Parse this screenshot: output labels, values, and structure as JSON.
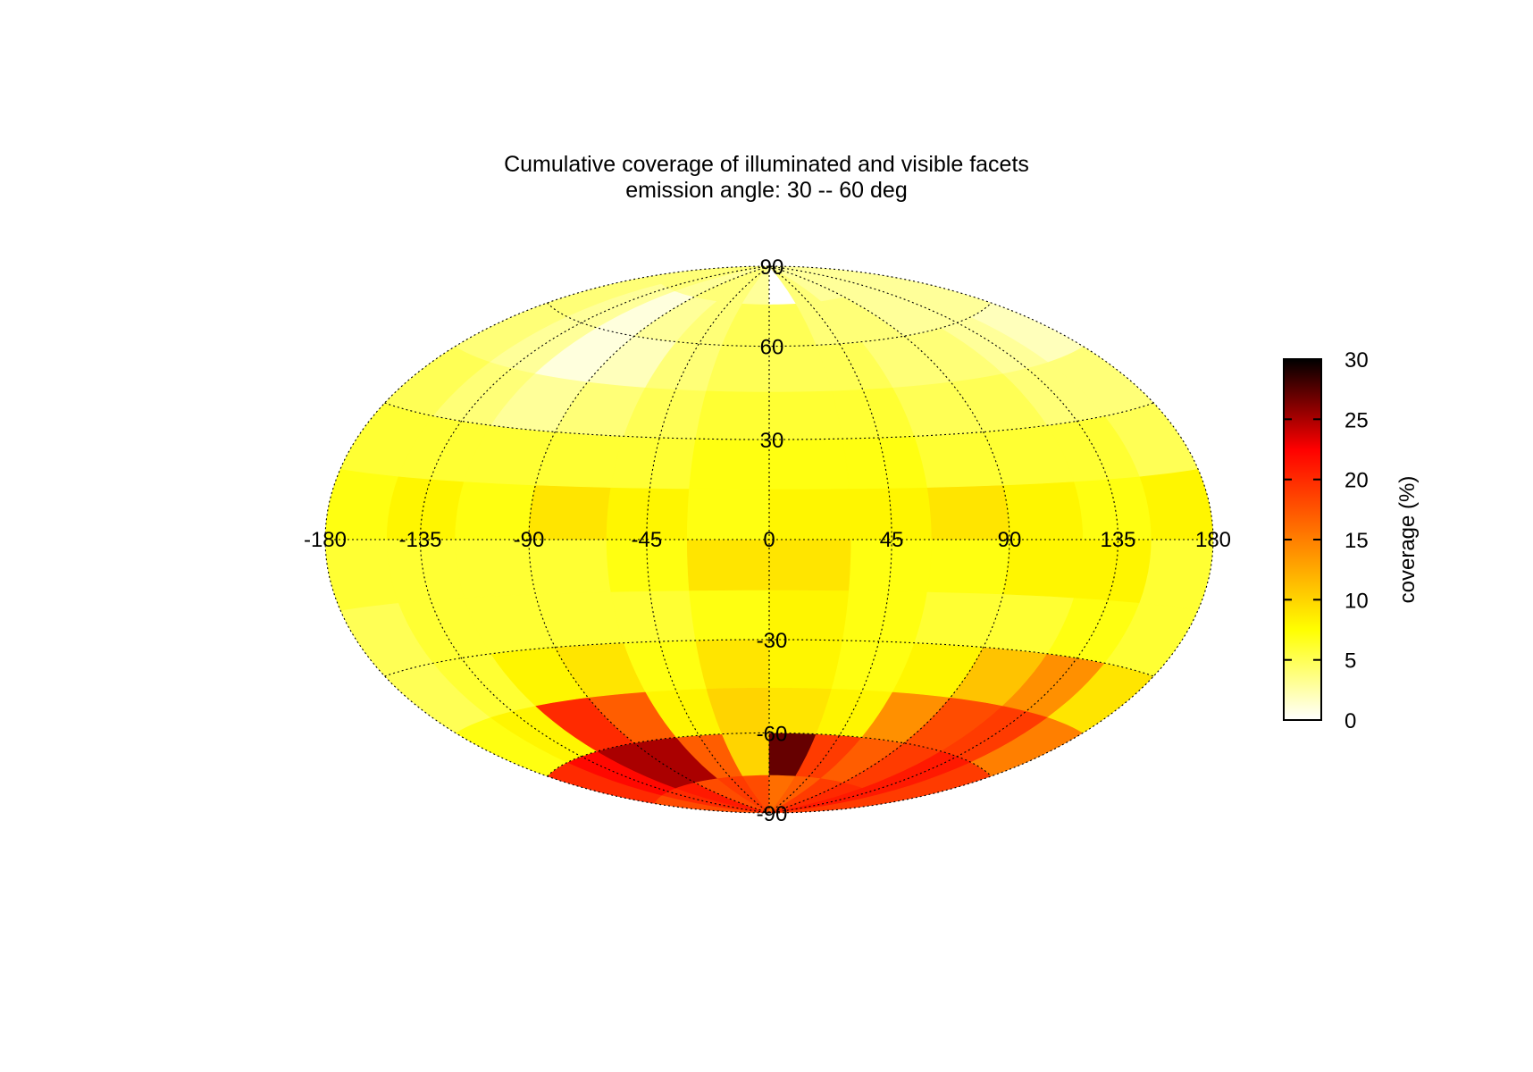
{
  "chart_data": {
    "type": "heatmap",
    "projection": "hammer-aitoff",
    "title": "Cumulative coverage of illuminated and visible facets",
    "subtitle": "emission angle: 30 -- 60 deg",
    "lon_ticks": [
      -180,
      -135,
      -90,
      -45,
      0,
      45,
      90,
      135,
      180
    ],
    "lat_ticks": [
      90,
      60,
      30,
      -30,
      -60,
      -90
    ],
    "lon_range": [
      -180,
      180
    ],
    "lat_range": [
      -90,
      90
    ],
    "grid": true,
    "colorbar": {
      "label": "coverage (%)",
      "range": [
        0,
        30
      ],
      "ticks": [
        0,
        5,
        10,
        15,
        20,
        25,
        30
      ],
      "placement": "right",
      "colormap": "hot",
      "stops": [
        "#ffffff",
        "#ffff00",
        "#ff7f00",
        "#ff0000",
        "#000000"
      ]
    },
    "lat_bands": [
      -90,
      -75,
      -60,
      -45,
      -30,
      -15,
      0,
      15,
      30,
      45,
      60,
      75,
      90
    ],
    "lon_cells": [
      -180,
      -150,
      -120,
      -90,
      -60,
      -30,
      0,
      30,
      60,
      90,
      120,
      150,
      180
    ],
    "values": [
      [
        18,
        20,
        21,
        18,
        19,
        18,
        16,
        17,
        19,
        20,
        21,
        19
      ],
      [
        20,
        22,
        25,
        25,
        17,
        10,
        27,
        19,
        17,
        19,
        21,
        19
      ],
      [
        7,
        8,
        20,
        17,
        8,
        10,
        9,
        8,
        14,
        18,
        19,
        15
      ],
      [
        5,
        6,
        8,
        9,
        7,
        9,
        8,
        7,
        8,
        11,
        14,
        9
      ],
      [
        5,
        6,
        6,
        6,
        6,
        7,
        8,
        7,
        6,
        6,
        7,
        6
      ],
      [
        6,
        6,
        6,
        6,
        7,
        9,
        9,
        7,
        7,
        8,
        8,
        6
      ],
      [
        7,
        8,
        7,
        9,
        8,
        7,
        8,
        8,
        9,
        8,
        7,
        8
      ],
      [
        6,
        6,
        6,
        6,
        6,
        7,
        7,
        7,
        6,
        6,
        6,
        5
      ],
      [
        5,
        4,
        3,
        4,
        5,
        6,
        6,
        6,
        5,
        5,
        4,
        4
      ],
      [
        4,
        3,
        1,
        2,
        4,
        5,
        5,
        5,
        4,
        4,
        3,
        2
      ],
      [
        4,
        3,
        1,
        3,
        4,
        5,
        5,
        4,
        4,
        3,
        3,
        3
      ],
      [
        4,
        4,
        3,
        4,
        4,
        3,
        0,
        4,
        3,
        3,
        3,
        3
      ]
    ]
  }
}
